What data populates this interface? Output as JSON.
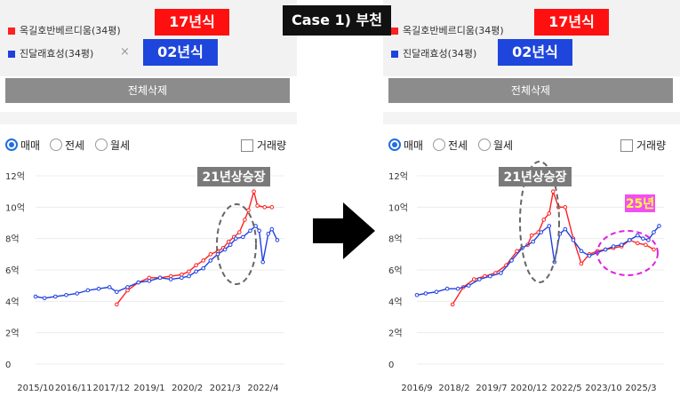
{
  "case_label": "Case 1) 부천",
  "panels": [
    {
      "series": [
        {
          "name": "옥길호반베르디움(34평)",
          "color": "#ff2020",
          "tag": "17년식",
          "removable": false
        },
        {
          "name": "진달래효성(34평)",
          "color": "#2040e0",
          "tag": "02년식",
          "removable": true
        }
      ],
      "remove_icon": "×",
      "delete_all": "전체삭제",
      "radios": [
        {
          "label": "매매",
          "selected": true
        },
        {
          "label": "전세",
          "selected": false
        },
        {
          "label": "월세",
          "selected": false
        }
      ],
      "volume_label": "거래량",
      "annotation": "21년상승장",
      "chart_data": {
        "type": "line",
        "ylim": [
          0,
          12
        ],
        "y_ticks": [
          "0",
          "2억",
          "4억",
          "6억",
          "8억",
          "10억",
          "12억"
        ],
        "x_ticks": [
          "2015/10",
          "2016/11",
          "2017/12",
          "2019/1",
          "2020/2",
          "2021/3",
          "2022/4"
        ],
        "x_start": 2015.75,
        "x_end": 2022.55,
        "series": [
          {
            "name": "옥길호반베르디움(34평)",
            "color": "#ff2020",
            "x": [
              2018.0,
              2018.3,
              2018.6,
              2018.9,
              2019.2,
              2019.5,
              2019.8,
              2020.0,
              2020.2,
              2020.4,
              2020.6,
              2020.8,
              2020.95,
              2021.1,
              2021.25,
              2021.4,
              2021.55,
              2021.65,
              2021.8,
              2021.9,
              2022.1,
              2022.3
            ],
            "y": [
              3.8,
              4.7,
              5.2,
              5.5,
              5.5,
              5.6,
              5.7,
              5.9,
              6.3,
              6.6,
              7.0,
              7.2,
              7.4,
              7.8,
              8.1,
              8.4,
              9.2,
              9.8,
              11.0,
              10.1,
              10.0,
              10.0
            ]
          },
          {
            "name": "진달래효성(34평)",
            "color": "#2040e0",
            "x": [
              2015.75,
              2016.0,
              2016.3,
              2016.6,
              2016.9,
              2017.2,
              2017.5,
              2017.8,
              2018.0,
              2018.3,
              2018.6,
              2018.9,
              2019.2,
              2019.5,
              2019.8,
              2020.0,
              2020.2,
              2020.4,
              2020.6,
              2020.8,
              2021.0,
              2021.15,
              2021.3,
              2021.5,
              2021.7,
              2021.85,
              2021.95,
              2022.05,
              2022.2,
              2022.3,
              2022.45
            ],
            "y": [
              4.3,
              4.2,
              4.3,
              4.4,
              4.5,
              4.7,
              4.8,
              4.9,
              4.6,
              4.9,
              5.2,
              5.3,
              5.5,
              5.4,
              5.5,
              5.6,
              5.9,
              6.1,
              6.6,
              7.0,
              7.3,
              7.6,
              8.0,
              8.1,
              8.5,
              8.8,
              8.5,
              6.5,
              8.3,
              8.6,
              7.9
            ]
          }
        ]
      }
    },
    {
      "series": [
        {
          "name": "옥길호반베르디움(34평)",
          "color": "#ff2020",
          "tag": "17년식",
          "removable": false
        },
        {
          "name": "진달래효성(34평)",
          "color": "#2040e0",
          "tag": "02년식",
          "removable": false
        }
      ],
      "remove_icon": "",
      "delete_all": "전체삭제",
      "radios": [
        {
          "label": "매매",
          "selected": true
        },
        {
          "label": "전세",
          "selected": false
        },
        {
          "label": "월세",
          "selected": false
        }
      ],
      "volume_label": "거래량",
      "annotation": "21년상승장",
      "annotation2": "25년",
      "chart_data": {
        "type": "line",
        "ylim": [
          0,
          12
        ],
        "y_ticks": [
          "0",
          "2억",
          "4억",
          "6억",
          "8억",
          "10억",
          "12억"
        ],
        "x_ticks": [
          "2016/9",
          "2018/2",
          "2019/7",
          "2020/12",
          "2022/5",
          "2023/10",
          "2025/3"
        ],
        "x_start": 2016.67,
        "x_end": 2025.75,
        "series": [
          {
            "name": "옥길호반베르디움(34평)",
            "color": "#ff2020",
            "x": [
              2018.0,
              2018.4,
              2018.8,
              2019.2,
              2019.6,
              2020.0,
              2020.4,
              2020.8,
              2020.95,
              2021.2,
              2021.4,
              2021.6,
              2021.75,
              2021.95,
              2022.2,
              2022.5,
              2022.8,
              2023.1,
              2023.4,
              2023.7,
              2024.0,
              2024.3,
              2024.6,
              2024.9,
              2025.2,
              2025.5
            ],
            "y": [
              3.8,
              4.9,
              5.4,
              5.6,
              5.8,
              6.3,
              7.2,
              7.6,
              8.2,
              8.4,
              9.2,
              9.6,
              11.0,
              10.0,
              10.0,
              8.0,
              6.4,
              7.0,
              7.2,
              7.3,
              7.4,
              7.5,
              7.9,
              7.7,
              7.6,
              7.3
            ]
          },
          {
            "name": "진달래효성(34평)",
            "color": "#2040e0",
            "x": [
              2016.67,
              2017.0,
              2017.4,
              2017.8,
              2018.2,
              2018.6,
              2019.0,
              2019.4,
              2019.8,
              2020.2,
              2020.6,
              2021.0,
              2021.3,
              2021.6,
              2021.8,
              2022.0,
              2022.2,
              2022.5,
              2022.8,
              2023.1,
              2023.4,
              2023.7,
              2024.0,
              2024.3,
              2024.6,
              2024.9,
              2025.1,
              2025.3,
              2025.5,
              2025.7
            ],
            "y": [
              4.4,
              4.5,
              4.6,
              4.8,
              4.8,
              5.0,
              5.4,
              5.6,
              5.8,
              6.6,
              7.4,
              7.8,
              8.4,
              8.8,
              6.5,
              8.3,
              8.6,
              7.9,
              7.2,
              6.9,
              7.1,
              7.3,
              7.5,
              7.6,
              7.9,
              8.2,
              8.0,
              7.9,
              8.4,
              8.8
            ]
          }
        ]
      }
    }
  ]
}
